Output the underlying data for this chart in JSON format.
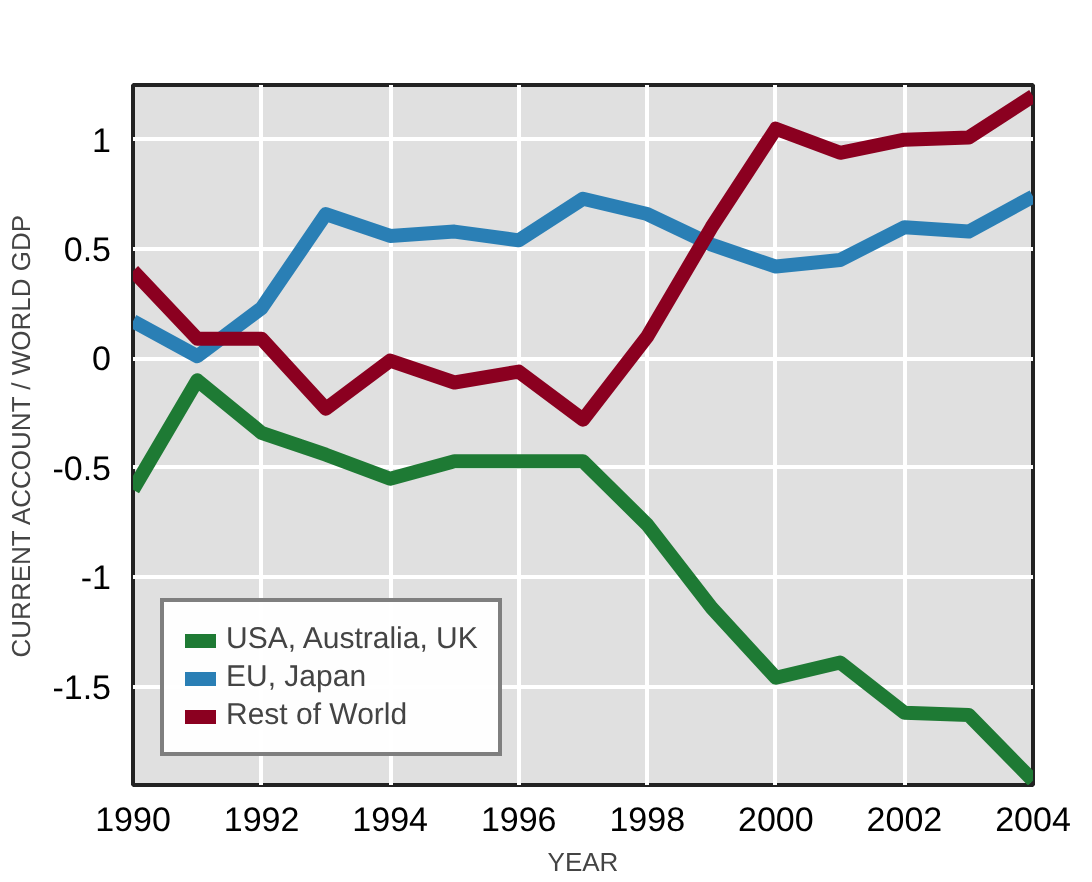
{
  "chart_data": {
    "type": "line",
    "xlabel": "YEAR",
    "ylabel": "CURRENT ACCOUNT / WORLD GDP",
    "x": [
      1990,
      1991,
      1992,
      1993,
      1994,
      1995,
      1996,
      1997,
      1998,
      1999,
      2000,
      2001,
      2002,
      2003,
      2004
    ],
    "series": [
      {
        "name": "USA, Australia, UK",
        "color": "#1e7a34",
        "values": [
          -0.6,
          -0.1,
          -0.34,
          -0.44,
          -0.55,
          -0.47,
          -0.47,
          -0.47,
          -0.76,
          -1.14,
          -1.46,
          -1.39,
          -1.62,
          -1.63,
          -1.93
        ]
      },
      {
        "name": "EU, Japan",
        "color": "#2a7fb5",
        "values": [
          0.17,
          0.01,
          0.23,
          0.66,
          0.56,
          0.58,
          0.54,
          0.73,
          0.66,
          0.52,
          0.42,
          0.45,
          0.6,
          0.58,
          0.74
        ]
      },
      {
        "name": "Rest of World",
        "color": "#8b0020",
        "values": [
          0.4,
          0.09,
          0.09,
          -0.23,
          -0.01,
          -0.11,
          -0.06,
          -0.28,
          0.1,
          0.6,
          1.05,
          0.94,
          1.0,
          1.01,
          1.2
        ]
      }
    ],
    "xlim": [
      1990,
      2004
    ],
    "ylim": [
      -1.95,
      1.25
    ],
    "xticks": [
      1990,
      1992,
      1994,
      1996,
      1998,
      2000,
      2002,
      2004
    ],
    "yticks": [
      -1.5,
      -1,
      -0.5,
      0,
      0.5,
      1
    ],
    "grid": true,
    "legend": "bottom left",
    "marker": "none",
    "line_style": "solid"
  }
}
